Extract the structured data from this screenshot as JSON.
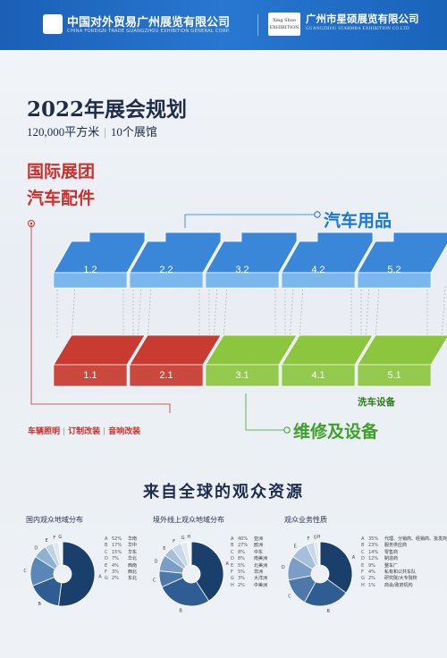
{
  "header": {
    "org1_cn": "中国对外贸易广州展览有限公司",
    "org1_en": "CHINA FOREIGN TRADE GUANGZHOU EXHIBITION GENERAL CORP.",
    "org2_logo_text": "Xing Shuo EXHIBITION",
    "org2_cn": "广州市星硕展览有限公司",
    "org2_en": "GUANGZHOU STARMBA EXHIBITION CO.LTD"
  },
  "plan": {
    "title": "2022年展会规划",
    "area": "120,000平方米",
    "halls": "10个展馆",
    "red_title_1": "国际展团",
    "red_title_2": "汽车配件",
    "blue_label": "汽车用品",
    "wash_label": "洗车设备",
    "green_label": "维修及设备",
    "tags": [
      "车辆照明",
      "订制改装",
      "音响改装"
    ]
  },
  "halls_upper": [
    "1.2",
    "2.2",
    "3.2",
    "4.2",
    "5.2"
  ],
  "halls_lower": [
    {
      "label": "1.1",
      "color": "#c93a30"
    },
    {
      "label": "2.1",
      "color": "#c93a30"
    },
    {
      "label": "3.1",
      "color": "#8cc63f"
    },
    {
      "label": "4.1",
      "color": "#8cc63f"
    },
    {
      "label": "5.1",
      "color": "#8cc63f"
    }
  ],
  "colors": {
    "blue_top": "#3a86d8",
    "blue_front": "#7ab7ec",
    "red": "#c93a30",
    "green": "#8cc63f",
    "navy": "#1f4e79"
  },
  "audience": {
    "title": "来自全球的观众资源",
    "pies": [
      {
        "title": "国内观众地域分布",
        "slices": [
          {
            "key": "A",
            "pct": "52%",
            "name": "华南",
            "v": 52,
            "color": "#1b3f6b"
          },
          {
            "key": "B",
            "pct": "17%",
            "name": "华中",
            "v": 17,
            "color": "#2f5d93"
          },
          {
            "key": "C",
            "pct": "15%",
            "name": "华东",
            "v": 15,
            "color": "#5a86b8"
          },
          {
            "key": "D",
            "pct": "7%",
            "name": "华北",
            "v": 7,
            "color": "#8fb1d4"
          },
          {
            "key": "E",
            "pct": "4%",
            "name": "西南",
            "v": 4,
            "color": "#bfd3e8"
          },
          {
            "key": "F",
            "pct": "3%",
            "name": "西北",
            "v": 3,
            "color": "#dfe8f2"
          },
          {
            "key": "G",
            "pct": "2%",
            "name": "东北",
            "v": 2,
            "color": "#f1f5f9"
          }
        ]
      },
      {
        "title": "境外线上观众地域分布",
        "slices": [
          {
            "key": "A",
            "pct": "40%",
            "name": "亚洲",
            "v": 40,
            "color": "#1b3f6b"
          },
          {
            "key": "B",
            "pct": "27%",
            "name": "欧洲",
            "v": 27,
            "color": "#2f5d93"
          },
          {
            "key": "C",
            "pct": "8%",
            "name": "中东",
            "v": 8,
            "color": "#4e78aa"
          },
          {
            "key": "D",
            "pct": "8%",
            "name": "南美洲",
            "v": 8,
            "color": "#7a9ec7"
          },
          {
            "key": "E",
            "pct": "5%",
            "name": "北美洲",
            "v": 5,
            "color": "#a6c0dc"
          },
          {
            "key": "F",
            "pct": "5%",
            "name": "非洲",
            "v": 5,
            "color": "#c8d8ea"
          },
          {
            "key": "G",
            "pct": "3%",
            "name": "大洋洲",
            "v": 3,
            "color": "#dfe8f2"
          },
          {
            "key": "H",
            "pct": "2%",
            "name": "中美洲",
            "v": 2,
            "color": "#f1f5f9"
          }
        ]
      },
      {
        "title": "观众业务性质",
        "slices": [
          {
            "key": "A",
            "pct": "35%",
            "name": "代理、分销商、经销商、批发商",
            "v": 35,
            "color": "#1b3f6b"
          },
          {
            "key": "B",
            "pct": "23%",
            "name": "服务供应商",
            "v": 23,
            "color": "#2f5d93"
          },
          {
            "key": "C",
            "pct": "14%",
            "name": "零售商",
            "v": 14,
            "color": "#4e78aa"
          },
          {
            "key": "D",
            "pct": "12%",
            "name": "制造商",
            "v": 12,
            "color": "#7a9ec7"
          },
          {
            "key": "E",
            "pct": "9%",
            "name": "整车厂",
            "v": 9,
            "color": "#a6c0dc"
          },
          {
            "key": "F",
            "pct": "4%",
            "name": "私有和公共车队",
            "v": 4,
            "color": "#c8d8ea"
          },
          {
            "key": "G",
            "pct": "2%",
            "name": "研究院/大专院校",
            "v": 2,
            "color": "#dfe8f2"
          },
          {
            "key": "H",
            "pct": "1%",
            "name": "商会/政府机构",
            "v": 1,
            "color": "#f1f5f9"
          }
        ]
      }
    ]
  }
}
